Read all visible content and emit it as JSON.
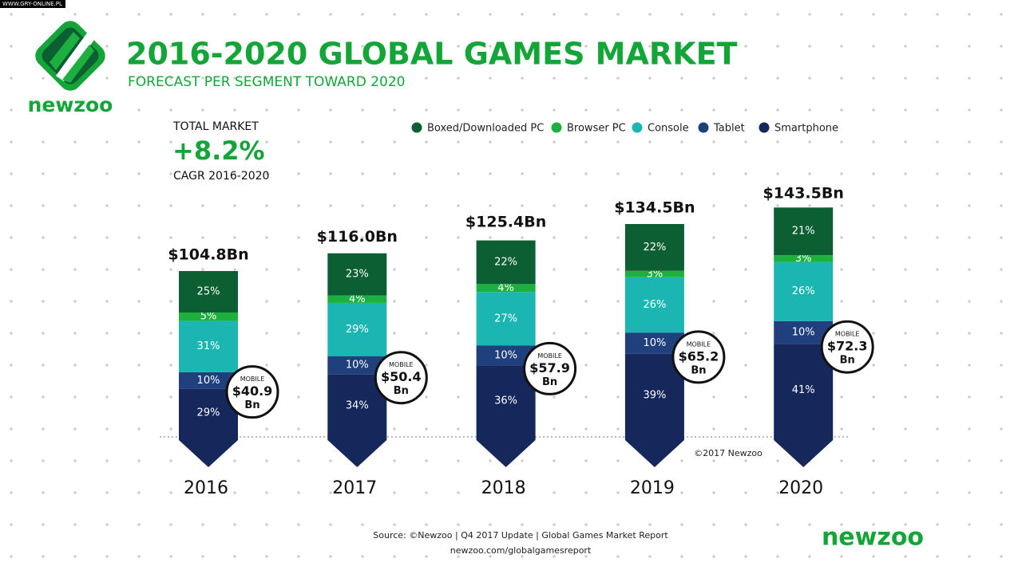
{
  "watermark": "WWW.GRY-ONLINE.PL",
  "brand": "newzoo",
  "summary": {
    "label": "TOTAL MARKET",
    "value": "+8.2%",
    "note": "CAGR 2016-2020"
  },
  "footer": {
    "copyright": "©2017 Newzoo",
    "source": "Source: ©Newzoo | Q4 2017 Update | Global Games Market Report",
    "url": "newzoo.com/globalgamesreport"
  },
  "chart_data": {
    "type": "stacked_bar",
    "title": "2016-2020 GLOBAL GAMES MARKET",
    "subtitle": "FORECAST PER SEGMENT TOWARD 2020",
    "legend": "top",
    "categories": [
      "2016",
      "2017",
      "2018",
      "2019",
      "2020"
    ],
    "series": [
      {
        "name": "Boxed/Downloaded PC",
        "color": "#0c5e33",
        "values": [
          25,
          23,
          22,
          22,
          21
        ],
        "value_labels": [
          "25%",
          "23%",
          "22%",
          "22%",
          "21%"
        ]
      },
      {
        "name": "Browser PC",
        "color": "#1cb13e",
        "values": [
          5,
          4,
          4,
          3,
          3
        ],
        "value_labels": [
          "5%",
          "4%",
          "4%",
          "3%",
          "3%"
        ]
      },
      {
        "name": "Console",
        "color": "#1bb5b2",
        "values": [
          31,
          29,
          27,
          26,
          26
        ],
        "value_labels": [
          "31%",
          "29%",
          "27%",
          "26%",
          "26%"
        ]
      },
      {
        "name": "Tablet",
        "color": "#1f3f7d",
        "values": [
          10,
          10,
          10,
          10,
          10
        ],
        "value_labels": [
          "10%",
          "10%",
          "10%",
          "10%",
          "10%"
        ]
      },
      {
        "name": "Smartphone",
        "color": "#15275b",
        "values": [
          29,
          34,
          36,
          39,
          41
        ],
        "value_labels": [
          "29%",
          "34%",
          "36%",
          "39%",
          "41%"
        ]
      }
    ],
    "totals": {
      "values": [
        104.8,
        116.0,
        125.4,
        134.5,
        143.5
      ],
      "value_labels": [
        "$104.8Bn",
        "$116.0Bn",
        "$125.4Bn",
        "$134.5Bn",
        "$143.5Bn"
      ]
    },
    "mobile": {
      "label": "MOBILE",
      "unit": "Bn",
      "values": [
        40.9,
        50.4,
        57.9,
        65.2,
        72.3
      ],
      "value_labels": [
        "$40.9",
        "$50.4",
        "$57.9",
        "$65.2",
        "$72.3"
      ]
    }
  }
}
